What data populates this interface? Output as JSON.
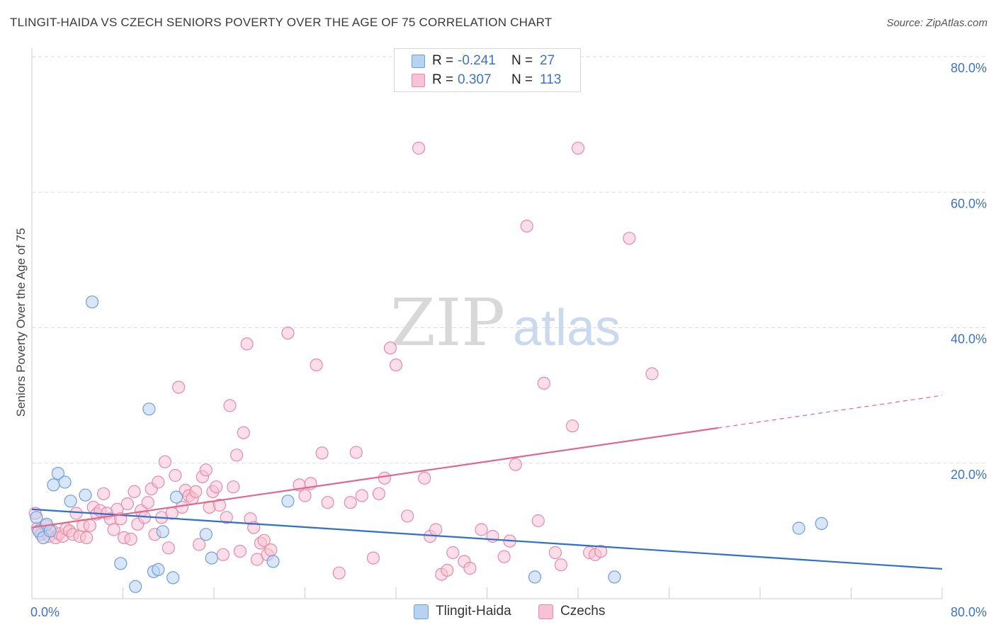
{
  "title": "TLINGIT-HAIDA VS CZECH SENIORS POVERTY OVER THE AGE OF 75 CORRELATION CHART",
  "source": "Source: ZipAtlas.com",
  "watermark": {
    "zip": "ZIP",
    "atlas": "atlas"
  },
  "colors": {
    "blue_fill": "#b8d2f2",
    "blue_stroke": "#6d9fdc",
    "blue_line": "#2f6fce",
    "pink_fill": "#f7c3d4",
    "pink_stroke": "#e88aa8",
    "pink_line": "#e0688f",
    "axis_text": "#3b74c9",
    "grid": "#dddddd"
  },
  "legend": {
    "rows": [
      {
        "r_label": "R =",
        "r_value": "-0.241",
        "n_label": "N =",
        "n_value": "27"
      },
      {
        "r_label": "R =",
        "r_value": "0.307",
        "n_label": "N =",
        "n_value": "113"
      }
    ]
  },
  "bottom_legend": [
    "Tlingit-Haida",
    "Czechs"
  ],
  "chart_data": {
    "type": "scatter",
    "xlabel": "",
    "ylabel": "Seniors Poverty Over the Age of 75",
    "xlim": [
      0,
      80
    ],
    "ylim": [
      0,
      80
    ],
    "x_tick_labels": [
      "0.0%",
      "80.0%"
    ],
    "y_tick_labels": [
      "20.0%",
      "40.0%",
      "60.0%",
      "80.0%"
    ],
    "y_ticks": [
      20,
      40,
      60,
      80
    ],
    "grid": true,
    "legend_position": "top-center",
    "series": [
      {
        "name": "Tlingit-Haida",
        "color": "#6d9fdc",
        "points": [
          [
            0.4,
            12.0
          ],
          [
            0.6,
            10.0
          ],
          [
            1.0,
            9.0
          ],
          [
            1.3,
            11.0
          ],
          [
            1.9,
            16.8
          ],
          [
            2.3,
            18.5
          ],
          [
            2.9,
            17.2
          ],
          [
            3.4,
            14.4
          ],
          [
            4.7,
            15.3
          ],
          [
            5.3,
            43.8
          ],
          [
            7.8,
            5.2
          ],
          [
            9.1,
            1.8
          ],
          [
            10.3,
            28.0
          ],
          [
            10.7,
            4.0
          ],
          [
            11.1,
            4.3
          ],
          [
            11.5,
            9.9
          ],
          [
            12.4,
            3.1
          ],
          [
            12.7,
            15.0
          ],
          [
            15.3,
            9.5
          ],
          [
            15.8,
            6.0
          ],
          [
            21.2,
            5.5
          ],
          [
            22.5,
            14.4
          ],
          [
            44.2,
            3.2
          ],
          [
            51.2,
            3.2
          ],
          [
            67.4,
            10.4
          ],
          [
            69.4,
            11.1
          ],
          [
            1.6,
            10.0
          ]
        ]
      },
      {
        "name": "Czechs",
        "color": "#e88aa8",
        "points": [
          [
            0.3,
            12.6
          ],
          [
            0.5,
            10.4
          ],
          [
            0.8,
            9.5
          ],
          [
            1.2,
            10.8
          ],
          [
            1.5,
            9.2
          ],
          [
            1.8,
            10.0
          ],
          [
            2.1,
            9.0
          ],
          [
            2.4,
            9.6
          ],
          [
            2.7,
            9.2
          ],
          [
            3.0,
            10.3
          ],
          [
            3.3,
            10.0
          ],
          [
            3.6,
            9.5
          ],
          [
            3.9,
            12.6
          ],
          [
            4.2,
            9.2
          ],
          [
            4.5,
            10.8
          ],
          [
            4.8,
            9.0
          ],
          [
            5.1,
            10.8
          ],
          [
            5.4,
            13.5
          ],
          [
            5.7,
            12.5
          ],
          [
            6.0,
            13.0
          ],
          [
            6.3,
            15.5
          ],
          [
            6.6,
            12.6
          ],
          [
            6.9,
            11.8
          ],
          [
            7.2,
            10.2
          ],
          [
            7.5,
            13.2
          ],
          [
            7.8,
            11.8
          ],
          [
            8.1,
            9.0
          ],
          [
            8.4,
            14.0
          ],
          [
            8.7,
            8.8
          ],
          [
            9.0,
            15.8
          ],
          [
            9.3,
            11.0
          ],
          [
            9.6,
            13.0
          ],
          [
            9.9,
            12.0
          ],
          [
            10.2,
            14.2
          ],
          [
            10.5,
            16.2
          ],
          [
            10.8,
            9.5
          ],
          [
            11.1,
            17.2
          ],
          [
            11.4,
            12.0
          ],
          [
            11.7,
            20.2
          ],
          [
            12.0,
            7.5
          ],
          [
            12.3,
            12.6
          ],
          [
            12.6,
            18.2
          ],
          [
            12.9,
            31.2
          ],
          [
            13.2,
            13.5
          ],
          [
            13.5,
            16.0
          ],
          [
            13.8,
            15.2
          ],
          [
            14.1,
            14.8
          ],
          [
            14.4,
            15.8
          ],
          [
            14.7,
            8.0
          ],
          [
            15.0,
            18.0
          ],
          [
            15.3,
            19.0
          ],
          [
            15.6,
            13.5
          ],
          [
            15.9,
            15.8
          ],
          [
            16.2,
            16.5
          ],
          [
            16.5,
            13.8
          ],
          [
            16.8,
            6.5
          ],
          [
            17.1,
            12.0
          ],
          [
            17.4,
            28.5
          ],
          [
            17.7,
            16.5
          ],
          [
            18.0,
            21.2
          ],
          [
            18.3,
            7.0
          ],
          [
            18.6,
            24.5
          ],
          [
            18.9,
            37.6
          ],
          [
            19.2,
            11.8
          ],
          [
            19.5,
            10.5
          ],
          [
            19.8,
            5.8
          ],
          [
            20.1,
            8.2
          ],
          [
            20.4,
            8.6
          ],
          [
            20.7,
            6.5
          ],
          [
            21.0,
            7.2
          ],
          [
            22.5,
            39.2
          ],
          [
            23.5,
            16.8
          ],
          [
            24.0,
            15.2
          ],
          [
            24.5,
            17.0
          ],
          [
            25.0,
            34.5
          ],
          [
            25.5,
            21.5
          ],
          [
            26.0,
            14.2
          ],
          [
            27.0,
            3.8
          ],
          [
            28.0,
            14.2
          ],
          [
            28.5,
            21.6
          ],
          [
            29.0,
            15.2
          ],
          [
            30.0,
            6.0
          ],
          [
            31.0,
            17.8
          ],
          [
            31.5,
            37.0
          ],
          [
            32.0,
            34.5
          ],
          [
            33.0,
            12.2
          ],
          [
            34.0,
            66.5
          ],
          [
            34.5,
            17.8
          ],
          [
            35.0,
            9.2
          ],
          [
            35.5,
            10.2
          ],
          [
            36.0,
            3.6
          ],
          [
            36.5,
            4.2
          ],
          [
            37.0,
            6.8
          ],
          [
            38.0,
            5.5
          ],
          [
            38.5,
            4.5
          ],
          [
            39.5,
            10.2
          ],
          [
            40.5,
            9.2
          ],
          [
            41.5,
            6.2
          ],
          [
            42.0,
            8.5
          ],
          [
            42.5,
            19.8
          ],
          [
            43.5,
            55.0
          ],
          [
            44.5,
            11.5
          ],
          [
            45.0,
            31.8
          ],
          [
            46.0,
            6.8
          ],
          [
            46.5,
            5.0
          ],
          [
            47.5,
            25.5
          ],
          [
            48.0,
            66.5
          ],
          [
            49.0,
            6.8
          ],
          [
            49.5,
            6.5
          ],
          [
            50.0,
            7.0
          ],
          [
            52.5,
            53.2
          ],
          [
            54.5,
            33.2
          ],
          [
            30.5,
            15.5
          ]
        ]
      }
    ],
    "trend_lines": [
      {
        "series": "Tlingit-Haida",
        "x": [
          0,
          80
        ],
        "y": [
          13.2,
          4.4
        ]
      },
      {
        "series": "Czechs",
        "x": [
          0,
          60.3
        ],
        "y": [
          10.5,
          25.2
        ],
        "extension": {
          "x": [
            60.3,
            80
          ],
          "y": [
            25.2,
            30.0
          ]
        }
      }
    ]
  }
}
